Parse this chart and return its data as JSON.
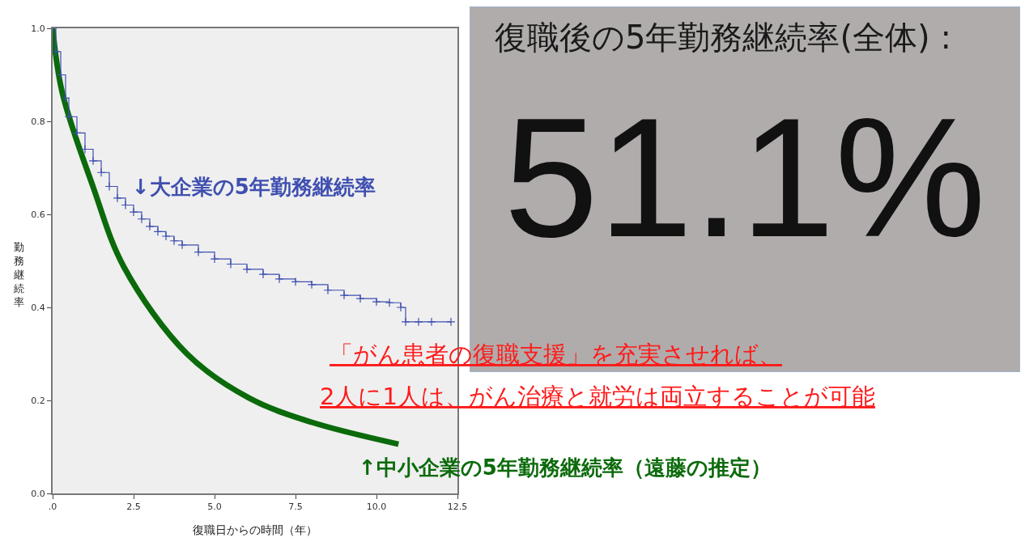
{
  "chart_data": [
    {
      "type": "line",
      "xlabel": "復職日からの時間（年）",
      "ylabel": "勤務継続率",
      "xlim": [
        0,
        12.5
      ],
      "ylim": [
        0,
        1
      ],
      "xticks": [
        {
          "value": 0,
          "label": ".0"
        },
        2.5,
        {
          "value": 5,
          "label": "5.0"
        },
        7.5,
        {
          "value": 10,
          "label": "10.0"
        },
        12.5
      ],
      "yticks": [
        {
          "value": 0,
          "label": "0.0"
        },
        0.2,
        0.4,
        0.6,
        0.8,
        {
          "value": 1,
          "label": "1.0"
        }
      ],
      "grid": false,
      "legend": false,
      "series": [
        {
          "name": "↓大企業の5年勤務継続率",
          "type": "step",
          "color": "#3f4fb0",
          "marker": "cross",
          "x": [
            0,
            0.1,
            0.25,
            0.4,
            0.5,
            0.75,
            1,
            1.25,
            1.5,
            1.75,
            2,
            2.25,
            2.5,
            2.75,
            3,
            3.25,
            3.5,
            3.75,
            4,
            4.5,
            5,
            5.5,
            6,
            6.5,
            7,
            7.5,
            8,
            8.5,
            9,
            9.5,
            10,
            10.4,
            10.75,
            10.9,
            11.3,
            11.7,
            12.3
          ],
          "values": [
            1,
            0.95,
            0.9,
            0.85,
            0.81,
            0.775,
            0.74,
            0.715,
            0.69,
            0.66,
            0.635,
            0.62,
            0.605,
            0.59,
            0.574,
            0.563,
            0.553,
            0.543,
            0.534,
            0.519,
            0.504,
            0.493,
            0.482,
            0.471,
            0.461,
            0.455,
            0.449,
            0.437,
            0.426,
            0.419,
            0.412,
            0.41,
            0.4,
            0.369,
            0.369,
            0.369,
            0.369
          ]
        },
        {
          "name": "↑中小企業の5年勤務継続率（遠藤の推定）",
          "type": "line",
          "color": "#0b6a0b",
          "marker": "none",
          "x": [
            0,
            0.3,
            1.25,
            2.2,
            4.15,
            6.07,
            8,
            10.68
          ],
          "values": [
            1,
            0.861,
            0.659,
            0.487,
            0.3,
            0.205,
            0.153,
            0.106
          ]
        }
      ],
      "annotations": [
        "「がん患者の復職支援」を充実させれば、",
        "2人に1人は、がん治療と就労は両立することが可能"
      ]
    },
    {
      "type": "other",
      "title": "復職後の5年勤務継続率(全体) :",
      "annotations": [
        "51.1%"
      ]
    }
  ]
}
